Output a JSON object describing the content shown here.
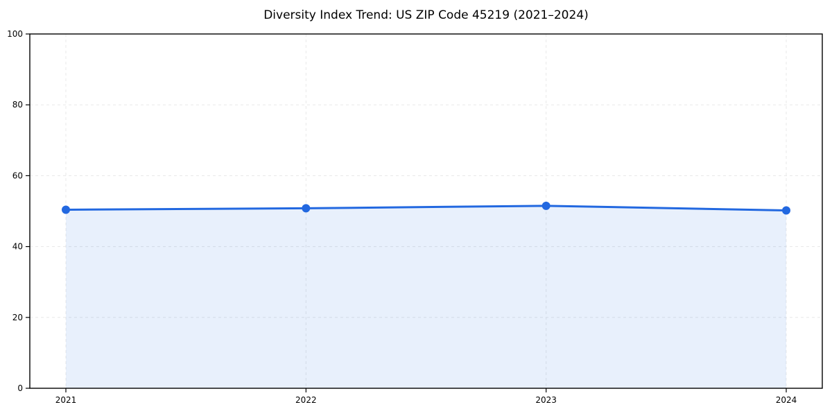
{
  "chart_data": {
    "type": "area",
    "title": "Diversity Index Trend: US ZIP Code 45219 (2021–2024)",
    "categories": [
      "2021",
      "2022",
      "2023",
      "2024"
    ],
    "series": [
      {
        "name": "Diversity Index",
        "values": [
          50.4,
          50.8,
          51.5,
          50.2
        ]
      }
    ],
    "xlabel": "",
    "ylabel": "",
    "ylim": [
      0,
      100
    ],
    "yticks": [
      0,
      20,
      40,
      60,
      80,
      100
    ],
    "ytick_labels": [
      "0",
      "20",
      "40",
      "60",
      "80",
      "100"
    ],
    "grid": true,
    "grid_style": "dashed",
    "legend": false,
    "markers": true,
    "area_fill": true,
    "colors": {
      "line": "#2268e0",
      "marker": "#2268e0",
      "area_fill": "#2268e0",
      "area_fill_opacity": 0.1,
      "grid": "#e8e8e8",
      "axes_border": "#000000",
      "text": "#000000",
      "background": "#ffffff"
    }
  }
}
